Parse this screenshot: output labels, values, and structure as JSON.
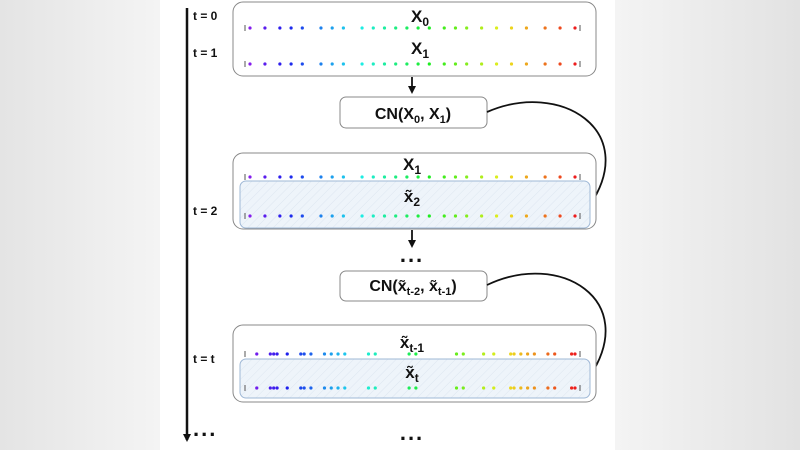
{
  "timeline": {
    "labels": [
      "t = 0",
      "t = 1",
      "t = 2",
      "t = t"
    ],
    "continuation": "..."
  },
  "blocks": [
    {
      "top_label": "X",
      "top_sub": "0",
      "bottom_label": "X",
      "bottom_sub": "1"
    },
    {
      "top_label": "X",
      "top_sub": "1",
      "bottom_label": "x̃",
      "bottom_sub": "2"
    },
    {
      "top_label": "x̃",
      "top_sub": "t-1",
      "bottom_label": "x̃",
      "bottom_sub": "t"
    }
  ],
  "operators": [
    {
      "name": "CN(",
      "a": "X",
      "a_sub": "0",
      "sep": ", ",
      "b": "X",
      "b_sub": "1",
      "close": ")"
    },
    {
      "name": "CN(",
      "a": "x̃",
      "a_sub": "t-2",
      "sep": ", ",
      "b": "x̃",
      "b_sub": "t-1",
      "close": ")"
    }
  ],
  "ellipsis": "...",
  "dot_colormap": "rainbow (violet to red)",
  "colors": {
    "inner_box_fill": "#eef4fa",
    "inner_box_stroke": "#9fb8d6",
    "box_stroke": "#888888"
  }
}
